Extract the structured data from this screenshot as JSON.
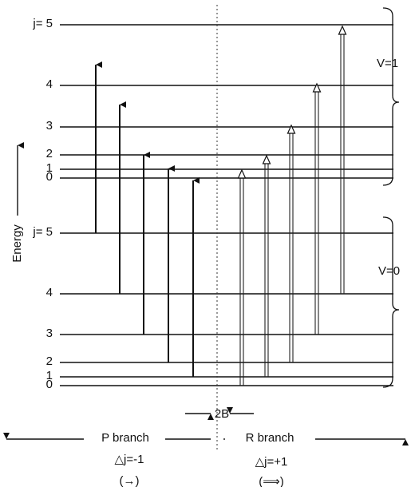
{
  "energy_axis_label": "Energy",
  "upper_band": {
    "label": "V=1",
    "levels": [
      "j= 5",
      "4",
      "3",
      "2",
      "1",
      "0"
    ]
  },
  "lower_band": {
    "label": "V=0",
    "levels": [
      "j= 5",
      "4",
      "3",
      "2",
      "1",
      "0"
    ]
  },
  "spacing_label": "2B",
  "p_branch": {
    "label": "P branch",
    "rule": "△j=-1",
    "symbol": "(→)"
  },
  "r_branch": {
    "label": "R branch",
    "rule": "△j=+1",
    "symbol": "(⟹)"
  }
}
